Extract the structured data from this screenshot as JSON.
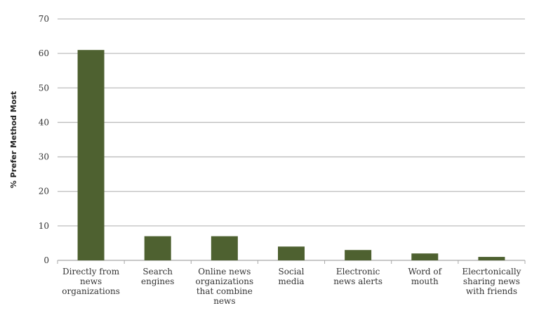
{
  "chart_data": {
    "type": "bar",
    "title": "",
    "xlabel": "",
    "ylabel": "% Prefer Method Most",
    "ylim": [
      0,
      70
    ],
    "yticks": [
      0,
      10,
      20,
      30,
      40,
      50,
      60,
      70
    ],
    "grid": true,
    "categories": [
      [
        "Directly from",
        "news",
        "organizations"
      ],
      [
        "Search",
        "engines"
      ],
      [
        "Online news",
        "organizations",
        "that combine",
        "news"
      ],
      [
        "Social",
        "media"
      ],
      [
        "Electronic",
        "news alerts"
      ],
      [
        "Word of",
        "mouth"
      ],
      [
        "Elecrtonically",
        "sharing news",
        "with friends"
      ]
    ],
    "values": [
      61,
      7,
      7,
      4,
      3,
      2,
      1
    ],
    "colors": {
      "bar": "#4e6130",
      "grid": "#bdbdbd"
    }
  }
}
